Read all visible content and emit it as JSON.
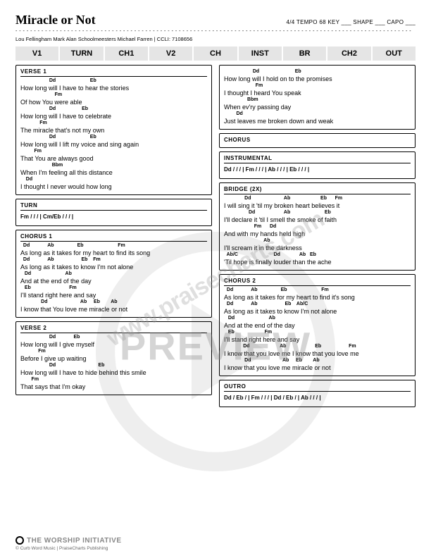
{
  "title": "Miracle or Not",
  "meta": "4/4  TEMPO  68   KEY ___  SHAPE ___  CAPO ___",
  "credits": "Lou Fellingham Mark Alan Schoolmeesters Michael Farren | CCLI: 7108656",
  "nav": [
    "V1",
    "TURN",
    "CH1",
    "V2",
    "CH",
    "INST",
    "BR",
    "CH2",
    "OUT"
  ],
  "left": [
    {
      "label": "VERSE 1",
      "lines": [
        {
          "c": "                     Dd                         Eb",
          "l": "How long will I have to hear the stories"
        },
        {
          "c": "                         Fm",
          "l": "Of how You were able"
        },
        {
          "c": "                     Dd                   Eb",
          "l": "How long will I have to celebrate"
        },
        {
          "c": "              Fm",
          "l": "The miracle that's not my own"
        },
        {
          "c": "                     Dd                         Eb",
          "l": "How long will I lift my voice and sing again"
        },
        {
          "c": "          Fm",
          "l": "That You are always good"
        },
        {
          "c": "                       Bbm",
          "l": "When I'm feeling all this distance"
        },
        {
          "c": "    Dd",
          "l": "I thought I never would how long"
        }
      ]
    },
    {
      "label": "TURN",
      "chordOnly": "Fm / / / | Cm/Eb / / / |"
    },
    {
      "label": "CHORUS 1",
      "lines": [
        {
          "c": "  Dd             Ab                 Eb                         Fm",
          "l": "As long as it takes for my heart to find its song"
        },
        {
          "c": "  Dd             Ab                    Eb    Fm",
          "l": "As long as it takes to know I'm not alone"
        },
        {
          "c": "   Dd                         Ab",
          "l": "And at the end of the day"
        },
        {
          "c": "   Eb                            Fm",
          "l": "I'll stand right here and say"
        },
        {
          "c": "               Dd                        Ab     Eb        Ab",
          "l": "I know that You love me miracle or not"
        }
      ]
    },
    {
      "label": "VERSE 2",
      "lines": [
        {
          "c": "                     Dd             Eb",
          "l": "How long will I give myself"
        },
        {
          "c": "             Fm",
          "l": "Before I give up waiting"
        },
        {
          "c": "                     Dd                               Eb",
          "l": "How long will I have to hide behind this smile"
        },
        {
          "c": "        Fm",
          "l": "That says that I'm okay"
        }
      ]
    }
  ],
  "right": [
    {
      "continuation": true,
      "lines": [
        {
          "c": "                     Dd                          Eb",
          "l": "How long will I hold on to the promises"
        },
        {
          "c": "                       Fm",
          "l": "I thought I heard You speak"
        },
        {
          "c": "                 Bbm",
          "l": "When ev'ry passing day"
        },
        {
          "c": "         Dd",
          "l": "Just leaves me broken down and weak"
        }
      ]
    },
    {
      "label": "CHORUS",
      "empty": true
    },
    {
      "label": "INSTRUMENTAL",
      "chordOnly": "Dd / / / | Fm / / / | Ab / / / | Eb / / / |"
    },
    {
      "label": "BRIDGE (2X)",
      "lines": [
        {
          "c": "               Dd                        Ab                      Eb      Fm",
          "l": "I will sing it 'til my broken heart believes it"
        },
        {
          "c": "                  Dd                     Ab                         Eb",
          "l": "I'll declare it 'til I smell the smoke of faith"
        },
        {
          "c": "                      Fm      Dd",
          "l": "And with my hands held high"
        },
        {
          "c": "                             Ab",
          "l": "I'll scream it in the darkness"
        },
        {
          "c": "  Ab/C                          Dd              Ab   Eb",
          "l": "'Til hope is finally louder than the ache"
        }
      ]
    },
    {
      "label": "CHORUS 2",
      "lines": [
        {
          "c": "  Dd             Ab                 Eb                         Fm",
          "l": "As long as it takes for my heart to find it's song"
        },
        {
          "c": "  Dd             Ab                    Eb    Ab/C",
          "l": "As long as it takes to know I'm not alone"
        },
        {
          "c": "   Dd                         Ab",
          "l": "And at the end of the day"
        },
        {
          "c": "   Eb                      Fm",
          "l": "I'll stand right here and say"
        },
        {
          "c": "              Dd                      Ab                     Eb                    Fm",
          "l": "I know that you love me I know that you love me"
        },
        {
          "c": "               Dd                       Ab     Eb        Ab",
          "l": "I know that you love me miracle or not"
        }
      ]
    },
    {
      "label": "OUTRO",
      "chordOnly": "Dd / Eb / | Fm / / / | Dd / Eb / | Ab / / / |"
    }
  ],
  "brand": "THE WORSHIP INITIATIVE",
  "copyright": "© Curb Word Music | PraiseCharts Publishing",
  "watermark_url": "www.praisecharts.com",
  "watermark_preview": "PREVIEW"
}
